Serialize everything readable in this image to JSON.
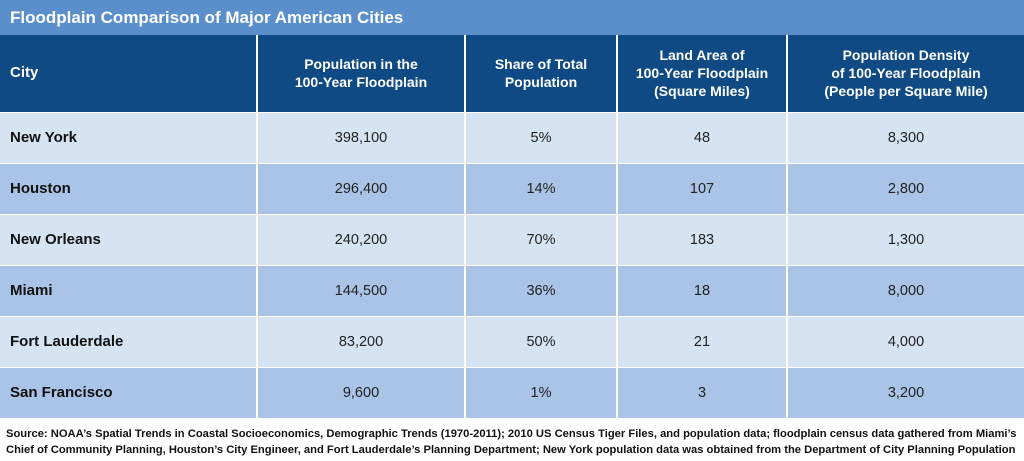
{
  "title": "Floodplain Comparison of Major American Cities",
  "columns": [
    [
      "City"
    ],
    [
      "Population in the",
      "100-Year Floodplain"
    ],
    [
      "Share of Total",
      "Population"
    ],
    [
      "Land Area of",
      "100-Year Floodplain",
      "(Square Miles)"
    ],
    [
      "Population Density",
      "of 100-Year Floodplain",
      "(People per Square Mile)"
    ]
  ],
  "chart_data": {
    "type": "table",
    "title": "Floodplain Comparison of Major American Cities",
    "columns": [
      "City",
      "Population in the 100-Year Floodplain",
      "Share of Total Population",
      "Land Area of 100-Year Floodplain (Square Miles)",
      "Population Density of 100-Year Floodplain (People per Square Mile)"
    ],
    "rows": [
      [
        "New York",
        "398,100",
        "5%",
        "48",
        "8,300"
      ],
      [
        "Houston",
        "296,400",
        "14%",
        "107",
        "2,800"
      ],
      [
        "New Orleans",
        "240,200",
        "70%",
        "183",
        "1,300"
      ],
      [
        "Miami",
        "144,500",
        "36%",
        "18",
        "8,000"
      ],
      [
        "Fort Lauderdale",
        "83,200",
        "50%",
        "21",
        "4,000"
      ],
      [
        "San Francisco",
        "9,600",
        "1%",
        "3",
        "3,200"
      ]
    ]
  },
  "colors": {
    "title_bar": "#5a8fcc",
    "header": "#0f4a84",
    "row_light": "#d6e3f3",
    "row_dark": "#a9c4e6"
  },
  "source": "Source: NOAA’s Spatial Trends in Coastal Socioeconomics, Demographic Trends (1970-2011); 2010 US Census Tiger Files, and population data; floodplain census data gathered from Miami’s Chief of Community Planning, Houston’s City Engineer, and Fort Lauderdale’s Planning Department; New York population data was obtained from the Department of City Planning Population Division."
}
